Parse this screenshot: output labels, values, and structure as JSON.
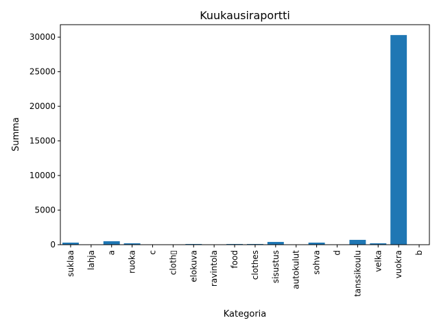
{
  "chart_data": {
    "type": "bar",
    "title": "Kuukausiraportti",
    "xlabel": "Kategoria",
    "ylabel": "Summa",
    "categories": [
      "suklaa",
      "lahja",
      "a",
      "ruoka",
      "c",
      "cloth\u0000",
      "elokuva",
      "ravintola",
      "food",
      "clothes",
      "sisustus",
      "autokulut",
      "sohva",
      "d",
      "tanssikoulu",
      "velka",
      "vuokra",
      "b"
    ],
    "values": [
      300,
      0,
      500,
      200,
      0,
      0,
      100,
      0,
      100,
      100,
      400,
      0,
      300,
      0,
      700,
      200,
      30300,
      0
    ],
    "ylim": [
      0,
      31800
    ],
    "yticks": [
      0,
      5000,
      10000,
      15000,
      20000,
      25000,
      30000
    ],
    "bar_color": "#1f77b4",
    "grid": false,
    "legend": "none"
  }
}
